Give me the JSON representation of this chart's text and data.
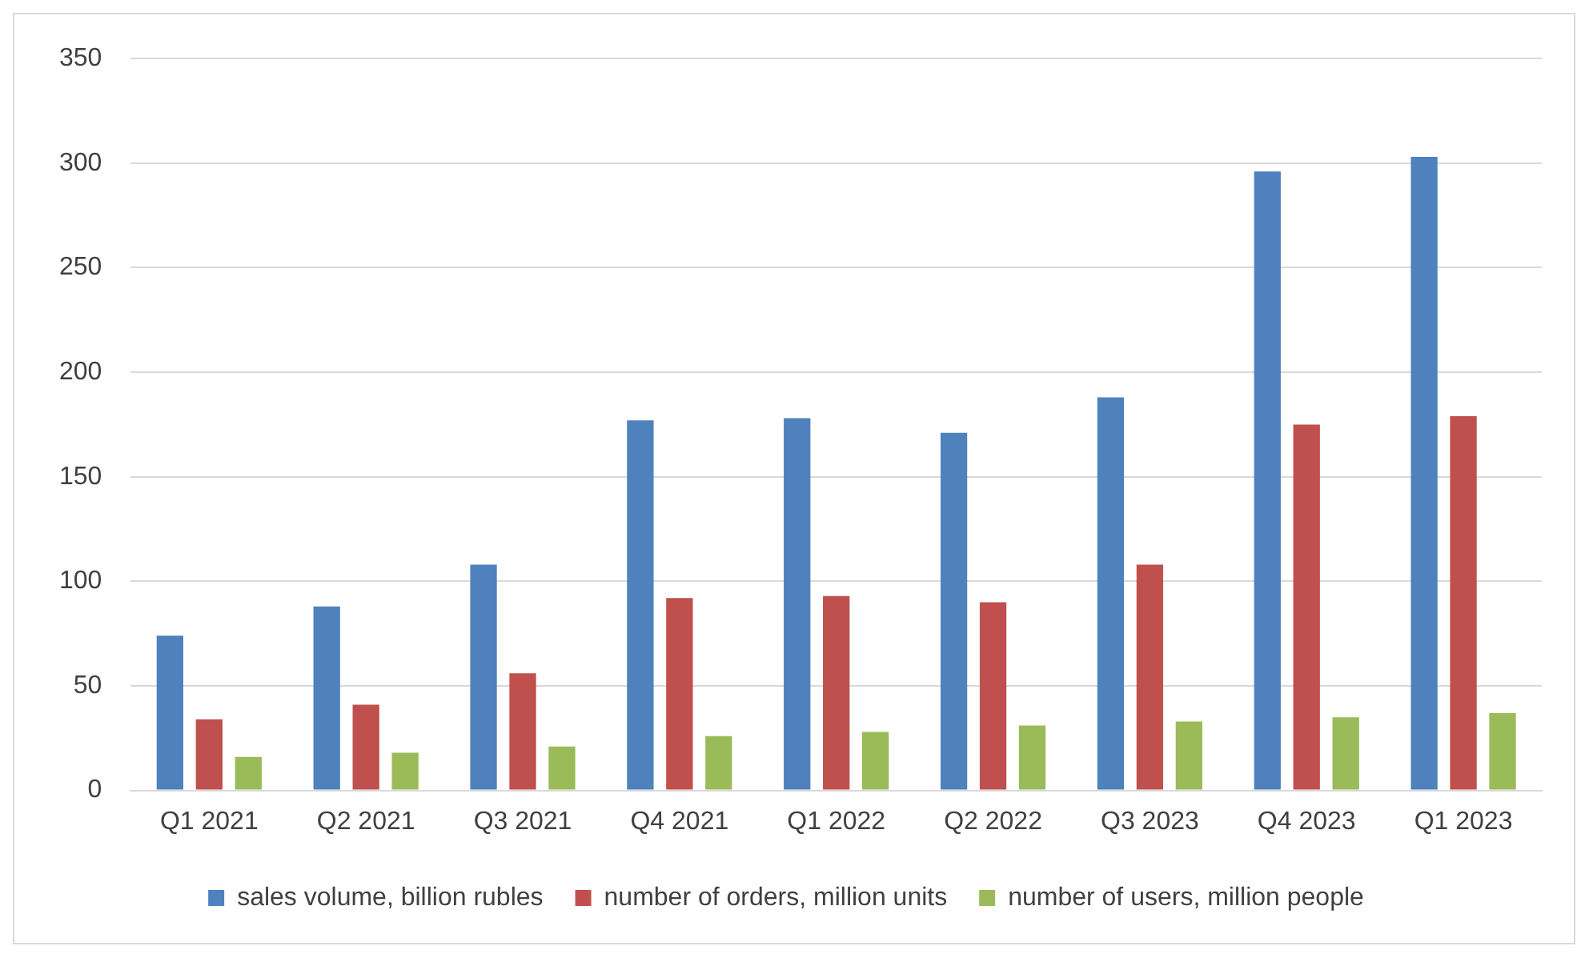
{
  "chart_data": {
    "type": "bar",
    "categories": [
      "Q1 2021",
      "Q2 2021",
      "Q3 2021",
      "Q4 2021",
      "Q1 2022",
      "Q2 2022",
      "Q3 2023",
      "Q4 2023",
      "Q1 2023"
    ],
    "series": [
      {
        "name": "sales volume, billion rubles",
        "color": "#4f81bd",
        "values": [
          74,
          88,
          108,
          177,
          178,
          171,
          188,
          296,
          303
        ]
      },
      {
        "name": "number of orders, million units",
        "color": "#c0504d",
        "values": [
          34,
          41,
          56,
          92,
          93,
          90,
          108,
          175,
          179
        ]
      },
      {
        "name": "number of users, million people",
        "color": "#9bbb59",
        "values": [
          16,
          18,
          21,
          26,
          28,
          31,
          33,
          35,
          37
        ]
      }
    ],
    "ylim": [
      0,
      350
    ],
    "yticks": [
      0,
      50,
      100,
      150,
      200,
      250,
      300,
      350
    ],
    "grid": "y",
    "legend": "bottom"
  }
}
